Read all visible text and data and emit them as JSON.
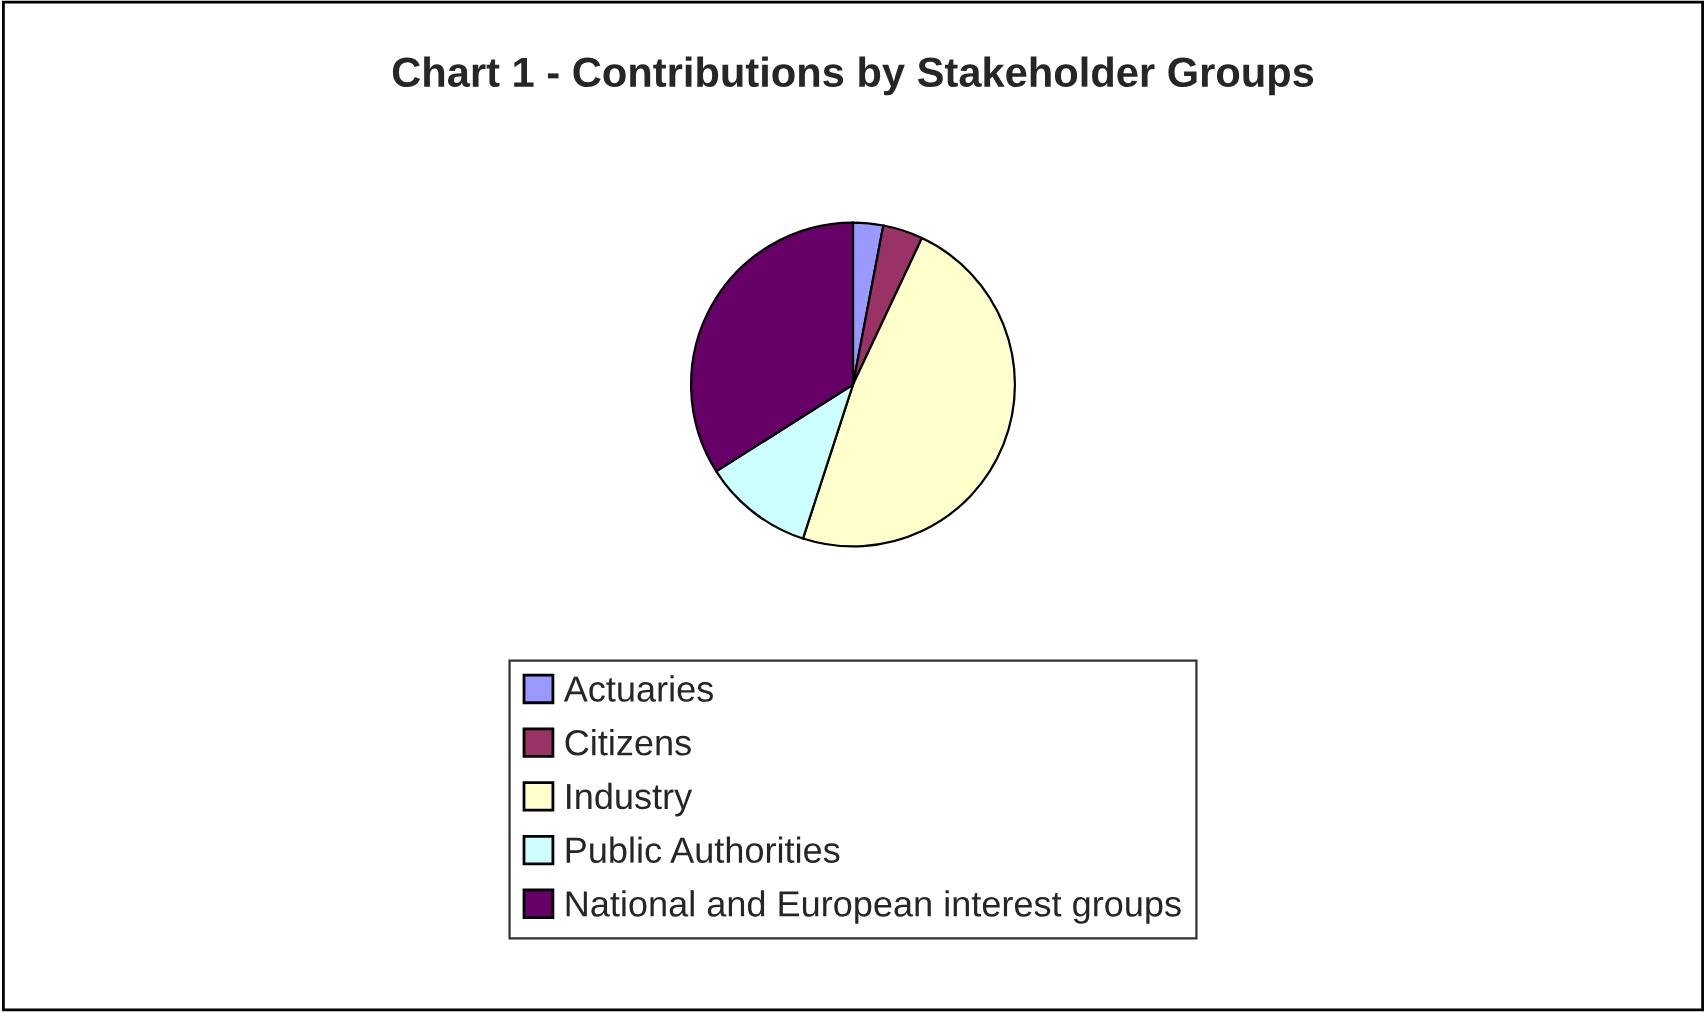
{
  "chart_data": {
    "type": "pie",
    "title": "Chart 1 - Contributions by Stakeholder Groups",
    "categories": [
      "Actuaries",
      "Citizens",
      "Industry",
      "Public Authorities",
      "National and European interest groups"
    ],
    "values": [
      3,
      4,
      48,
      11,
      34
    ],
    "colors": [
      "#9999ff",
      "#993366",
      "#ffffcc",
      "#ccffff",
      "#660066"
    ],
    "legend": "bottom"
  }
}
